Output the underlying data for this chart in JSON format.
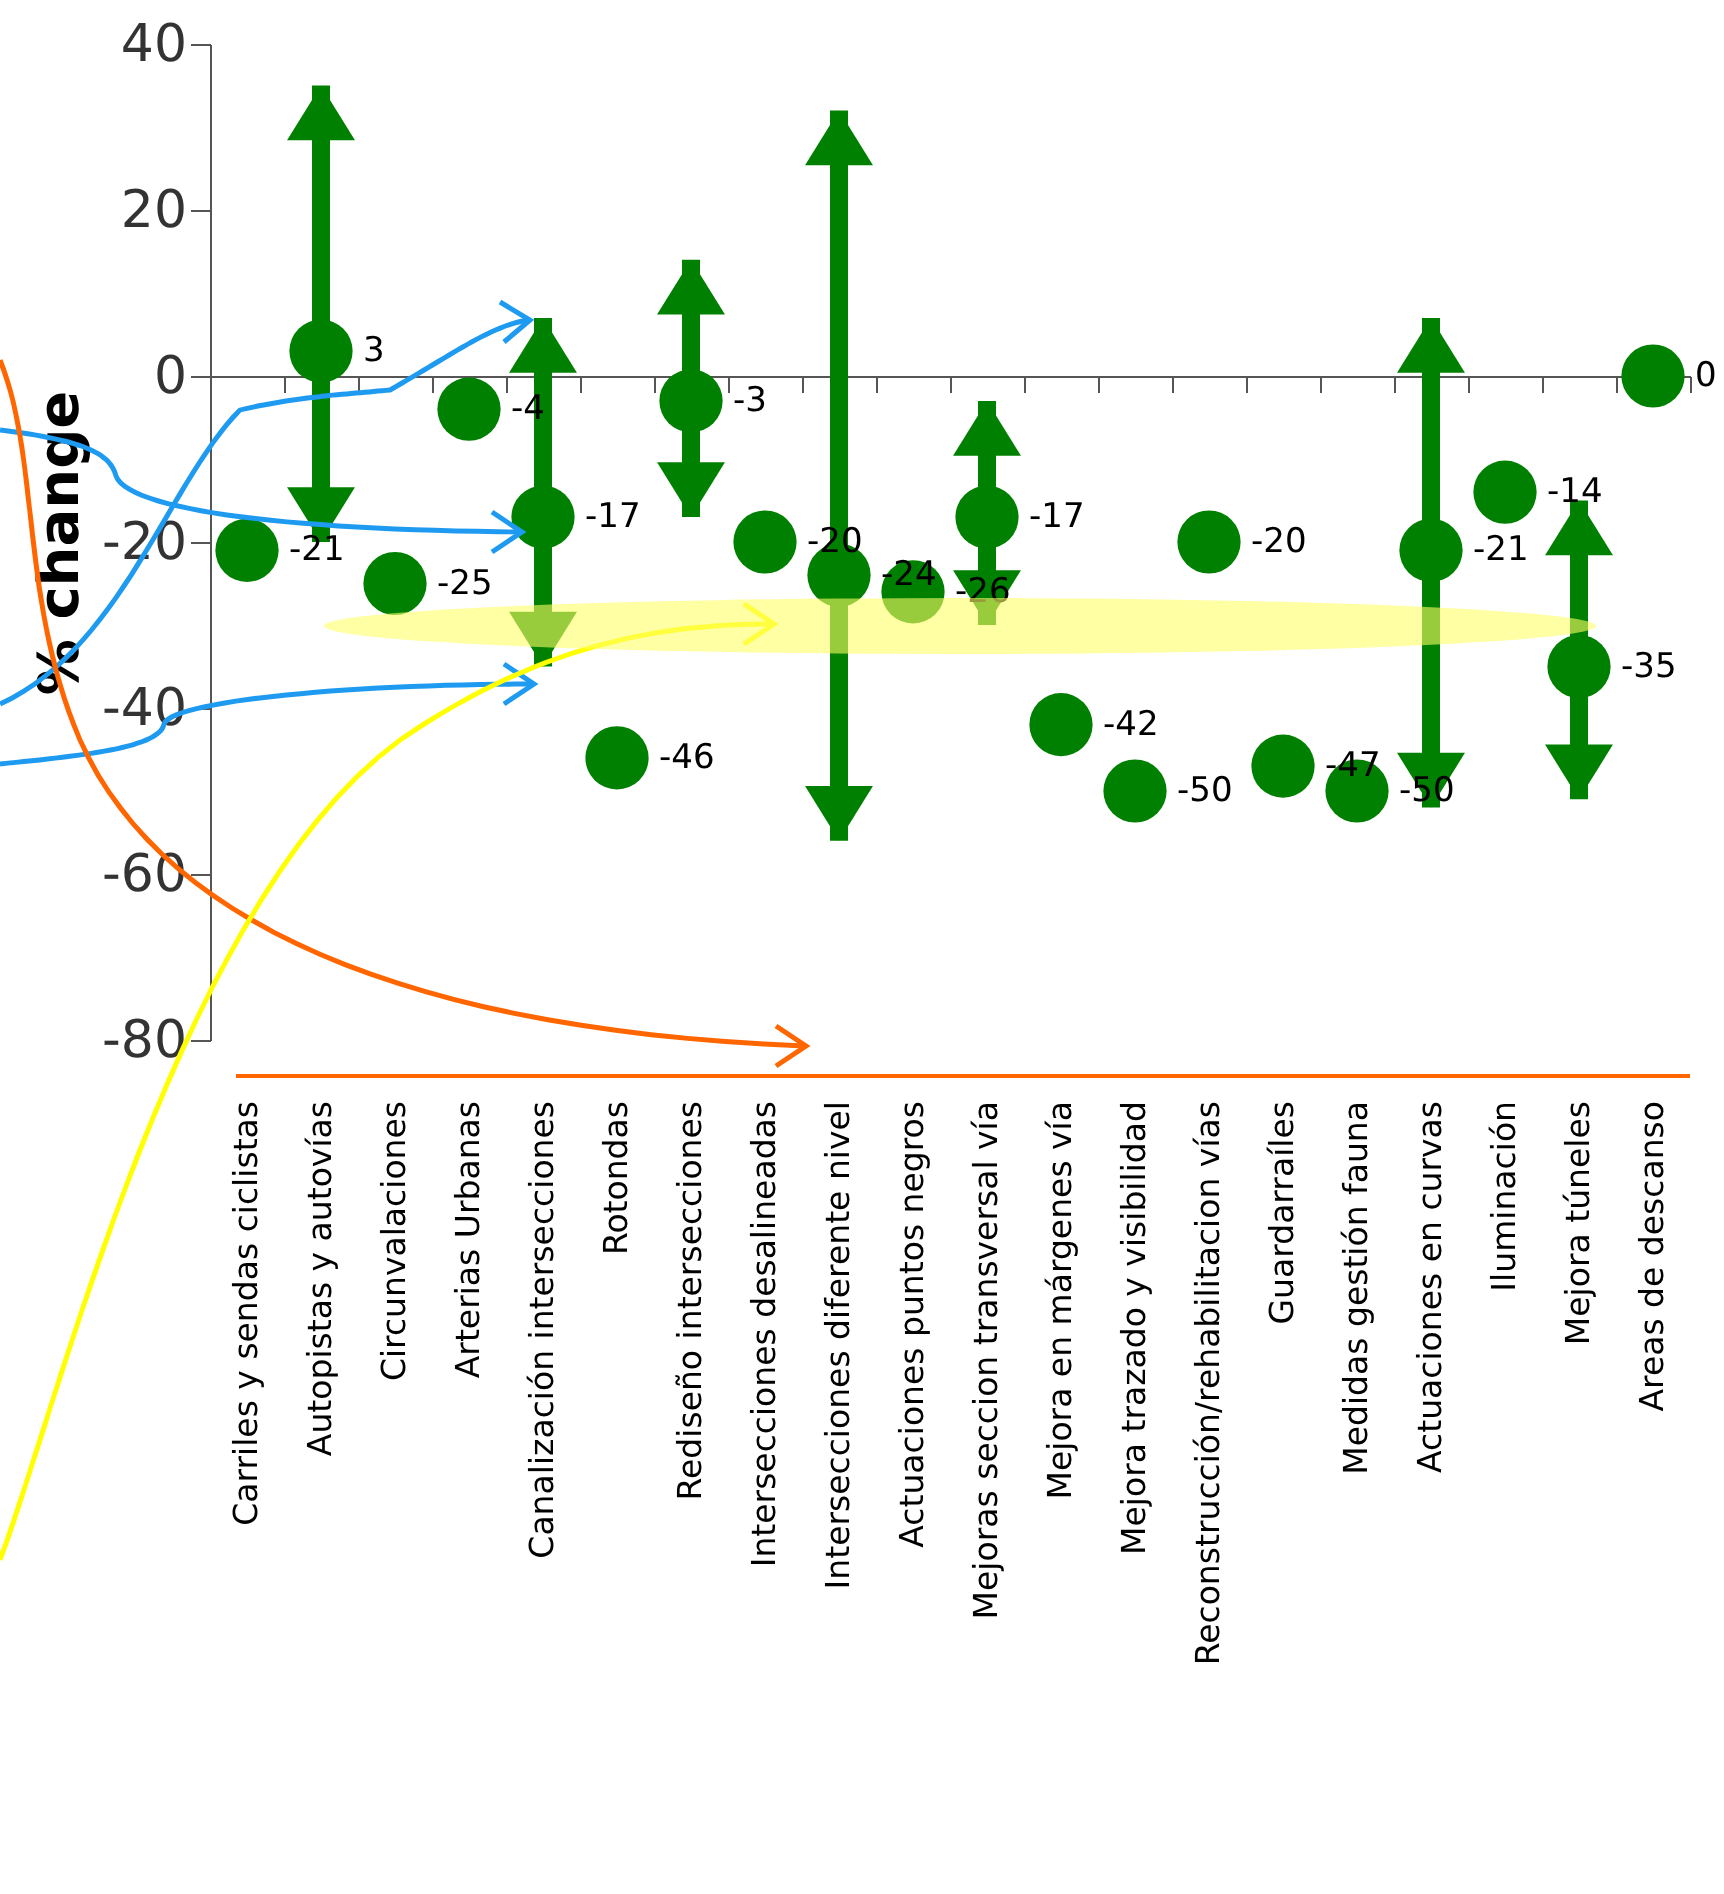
{
  "chart_data": {
    "type": "scatter",
    "ylabel": "% change",
    "categories": [
      "Carriles y sendas ciclistas",
      "Autopistas y autovías",
      "Circunvalaciones",
      "Arterias Urbanas",
      "Canalización intersecciones",
      "Rotondas",
      "Rediseño intersecciones",
      "Intersecciones desalineadas",
      "Intersecciones diferente nivel",
      "Actuaciones puntos negros",
      "Mejoras seccion transversal vía",
      "Mejora en márgenes vía",
      "Mejora trazado y visibilidad",
      "Reconstrucción/rehabilitacion vías",
      "Guardarraíles",
      "Medidas gestión fauna",
      "Actuaciones en curvas",
      "Iluminación",
      "Mejora túneles",
      "Areas de descanso"
    ],
    "values": [
      -21,
      3,
      -25,
      -4,
      -17,
      -46,
      -3,
      -20,
      -24,
      -26,
      -17,
      -42,
      -50,
      -20,
      -47,
      -50,
      -21,
      -14,
      -35,
      0
    ],
    "errors": [
      null,
      [
        -20,
        35
      ],
      null,
      null,
      [
        -35,
        7
      ],
      null,
      [
        -17,
        14
      ],
      null,
      [
        -56,
        32
      ],
      null,
      [
        -30,
        -3
      ],
      null,
      null,
      null,
      null,
      null,
      [
        -52,
        7
      ],
      null,
      [
        -51,
        -15
      ],
      null
    ],
    "color": "#008000",
    "marker": "circle",
    "data_labels": true,
    "ylim": [
      -80,
      40
    ],
    "yticks": [
      -80,
      -60,
      -40,
      -20,
      0,
      20,
      40
    ],
    "grid": false
  }
}
